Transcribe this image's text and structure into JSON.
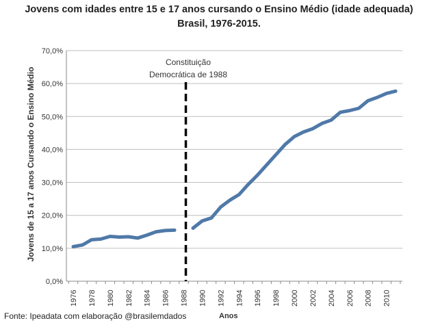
{
  "chart_data": {
    "type": "line",
    "title": "Jovens com idades entre 15 e 17 anos cursando o Ensino Médio (idade adequada)",
    "subtitle": "Brasil, 1976-2015.",
    "xlabel": "Anos",
    "ylabel": "Jovens de 15 a 17 anos Cursando o Ensino Médio",
    "ylim": [
      0,
      70
    ],
    "yticks": [
      "0,0%",
      "10,0%",
      "20,0%",
      "30,0%",
      "40,0%",
      "50,0%",
      "60,0%",
      "70,0%"
    ],
    "grid": true,
    "categories": [
      "1976",
      "1977",
      "1978",
      "1979",
      "1980",
      "1981",
      "1982",
      "1983",
      "1984",
      "1985",
      "1986",
      "1987",
      "1988",
      "1989",
      "1990",
      "1991",
      "1992",
      "1993",
      "1994",
      "1995",
      "1996",
      "1997",
      "1998",
      "1999",
      "2000",
      "2001",
      "2002",
      "2003",
      "2004",
      "2005",
      "2006",
      "2007",
      "2008",
      "2009",
      "2010",
      "2011"
    ],
    "xtick_labels": [
      "1976",
      "1978",
      "1980",
      "1982",
      "1984",
      "1986",
      "1988",
      "1990",
      "1992",
      "1994",
      "1996",
      "1998",
      "2000",
      "2002",
      "2004",
      "2006",
      "2008",
      "2010"
    ],
    "values": [
      10.5,
      11.0,
      12.6,
      12.8,
      13.6,
      13.4,
      13.5,
      13.1,
      14.0,
      15.0,
      15.4,
      15.5,
      null,
      16.1,
      18.3,
      19.2,
      22.5,
      24.6,
      26.3,
      29.4,
      32.2,
      35.3,
      38.4,
      41.5,
      43.9,
      45.3,
      46.3,
      47.9,
      48.9,
      51.3,
      51.8,
      52.5,
      54.8,
      55.8,
      57.0,
      57.7
    ],
    "line_color": "#4f79a8",
    "annotation": {
      "line1": "Constituição",
      "line2": "Democrática de 1988",
      "at": "1988"
    }
  },
  "source": "Fonte: Ipeadata com elaboração @brasilemdados"
}
